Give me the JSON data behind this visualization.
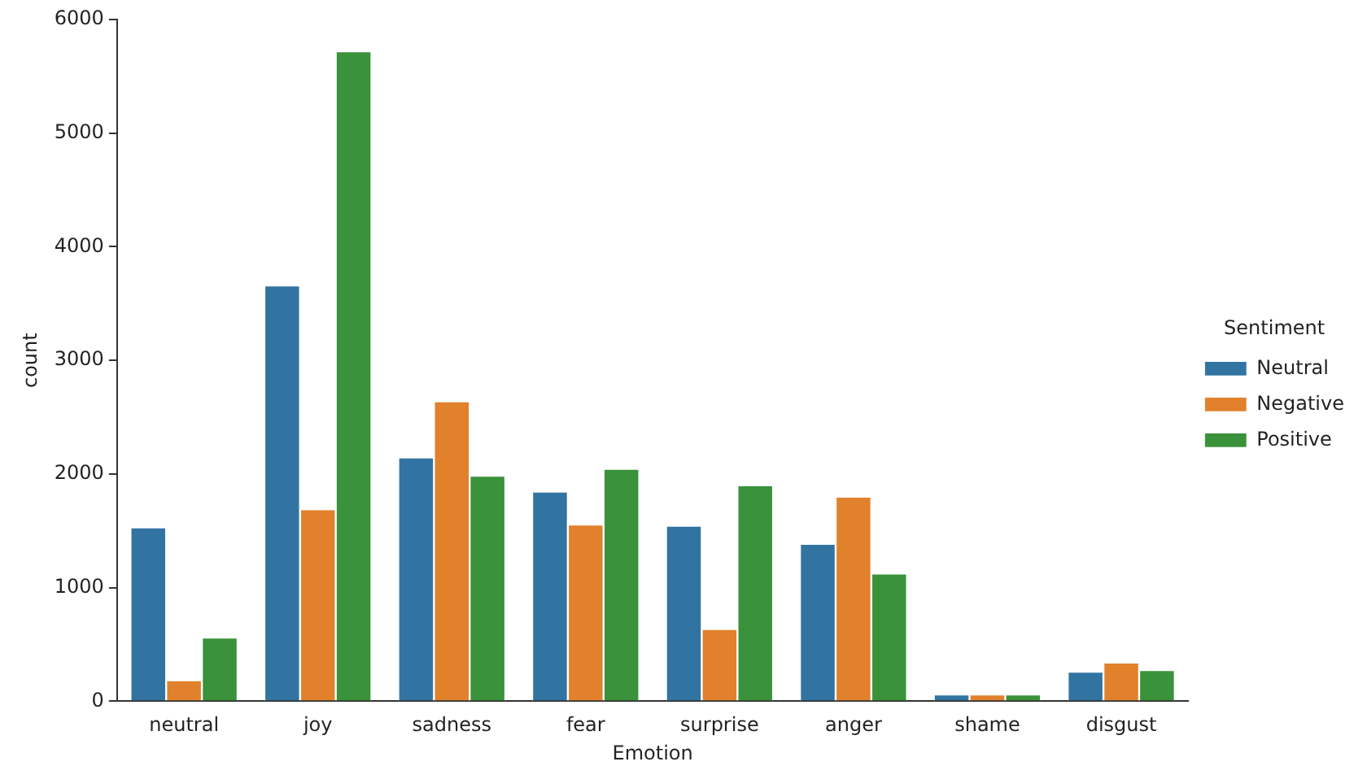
{
  "chart_data": {
    "type": "bar",
    "xlabel": "Emotion",
    "ylabel": "count",
    "legend_title": "Sentiment",
    "legend": "right",
    "grid": false,
    "categories": [
      "neutral",
      "joy",
      "sadness",
      "fear",
      "surprise",
      "anger",
      "shame",
      "disgust"
    ],
    "ylim": [
      0,
      6000
    ],
    "yticks": [
      0,
      1000,
      2000,
      3000,
      4000,
      5000,
      6000
    ],
    "series": [
      {
        "name": "Neutral",
        "color": "#3274a1",
        "values": [
          1530,
          3660,
          2145,
          1845,
          1545,
          1385,
          60,
          260
        ]
      },
      {
        "name": "Negative",
        "color": "#e1812c",
        "values": [
          185,
          1690,
          2640,
          1555,
          635,
          1800,
          60,
          340
        ]
      },
      {
        "name": "Positive",
        "color": "#3a923a",
        "values": [
          560,
          5720,
          1985,
          2045,
          1900,
          1125,
          60,
          275
        ]
      }
    ]
  }
}
